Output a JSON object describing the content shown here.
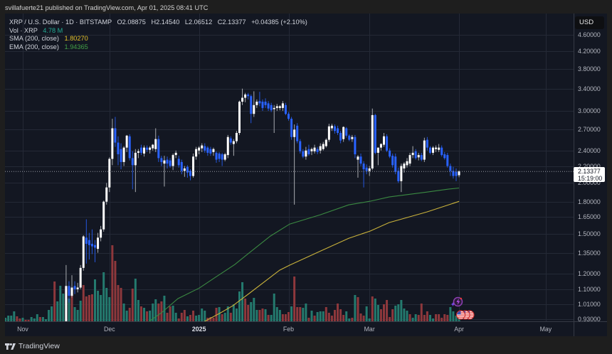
{
  "header": {
    "publisher_line": "svillafuerte21 published on TradingView.com, Apr 01, 2025 08:41 UTC"
  },
  "legend": {
    "symbol": "XRP / U.S. Dollar · 1D · BITSTAMP",
    "open": "O2.08875",
    "high": "H2.14540",
    "low": "L2.06512",
    "close": "C2.13377",
    "change": "+0.04385 (+2.10%)",
    "volume_label": "Vol · XRP",
    "volume_value": "4.78 M",
    "sma_label": "SMA (200, close)",
    "sma_value": "1.80270",
    "ema_label": "EMA (200, close)",
    "ema_value": "1.94365"
  },
  "price_axis": {
    "currency": "USD",
    "last_price": "2.13377",
    "countdown": "15:19:00"
  },
  "footer": {
    "brand": "TradingView",
    "logo_icon": "tradingview-logo-icon"
  },
  "event_markers": [
    {
      "icon": "lightning-event-icon",
      "index": 150
    },
    {
      "icon": "us-flag-icon",
      "index": 151
    },
    {
      "icon": "us-flag-icon",
      "index": 152
    },
    {
      "icon": "us-flag-icon",
      "index": 153
    }
  ],
  "colors": {
    "grid": "#242936",
    "axis_line": "#363a45",
    "candle_up": "#ffffff",
    "candle_up_wick": "#a9abb0",
    "candle_down": "#2962ff",
    "candle_down_wick": "#2456dc",
    "volume_up": "#247a6e",
    "volume_down": "#8e383c",
    "sma": "#c9b23b",
    "ema": "#3b8a42",
    "last_price_line": "#9598a1"
  },
  "chart_data": {
    "type": "candlestick",
    "title": "XRP / U.S. Dollar · 1D · BITSTAMP",
    "xlabel": "",
    "ylabel": "USD",
    "yscale": "log",
    "ylim": [
      0.918,
      5.19
    ],
    "grid": true,
    "legend_position": "top-left",
    "x_index_note": "index = days since Nov 1, 2024",
    "price_ticks": [
      {
        "value": 4.6,
        "label": "4.60000"
      },
      {
        "value": 4.2,
        "label": "4.20000"
      },
      {
        "value": 3.8,
        "label": "3.80000"
      },
      {
        "value": 3.4,
        "label": "3.40000"
      },
      {
        "value": 3.0,
        "label": "3.00000"
      },
      {
        "value": 2.7,
        "label": "2.70000"
      },
      {
        "value": 2.4,
        "label": "2.40000"
      },
      {
        "value": 2.2,
        "label": "2.20000"
      },
      {
        "value": 2.0,
        "label": "2.00000"
      },
      {
        "value": 1.8,
        "label": "1.80000"
      },
      {
        "value": 1.65,
        "label": "1.65000"
      },
      {
        "value": 1.5,
        "label": "1.50000"
      },
      {
        "value": 1.35,
        "label": "1.35000"
      },
      {
        "value": 1.2,
        "label": "1.20000"
      },
      {
        "value": 1.1,
        "label": "1.10000"
      },
      {
        "value": 1.01,
        "label": "1.01000"
      },
      {
        "value": 0.93,
        "label": "0.93000"
      }
    ],
    "time_ticks": [
      {
        "index": 0,
        "label": "Nov",
        "bold": false
      },
      {
        "index": 30,
        "label": "Dec",
        "bold": false
      },
      {
        "index": 61,
        "label": "2025",
        "bold": true
      },
      {
        "index": 92,
        "label": "Feb",
        "bold": false
      },
      {
        "index": 120,
        "label": "Mar",
        "bold": false
      },
      {
        "index": 151,
        "label": "Apr",
        "bold": false
      },
      {
        "index": 181,
        "label": "May",
        "bold": false
      }
    ],
    "last_price": 2.13377,
    "candles": {
      "start_index": 15,
      "ohlc": [
        [
          0.9,
          1.26,
          0.86,
          1.12
        ],
        [
          1.12,
          1.15,
          1.02,
          1.06
        ],
        [
          1.06,
          1.19,
          1.05,
          1.11
        ],
        [
          1.12,
          1.15,
          1.07,
          1.1
        ],
        [
          1.1,
          1.14,
          1.08,
          1.11
        ],
        [
          1.11,
          1.26,
          1.1,
          1.24
        ],
        [
          1.24,
          1.49,
          1.22,
          1.48
        ],
        [
          1.47,
          1.63,
          1.27,
          1.42
        ],
        [
          1.45,
          1.51,
          1.3,
          1.41
        ],
        [
          1.42,
          1.54,
          1.34,
          1.4
        ],
        [
          1.41,
          1.45,
          1.28,
          1.39
        ],
        [
          1.38,
          1.51,
          1.35,
          1.47
        ],
        [
          1.47,
          1.57,
          1.44,
          1.54
        ],
        [
          1.54,
          1.81,
          1.52,
          1.8
        ],
        [
          1.8,
          2.0,
          1.77,
          1.95
        ],
        [
          1.95,
          2.31,
          1.9,
          2.29
        ],
        [
          2.29,
          2.87,
          2.21,
          2.72
        ],
        [
          2.72,
          2.9,
          2.45,
          2.51
        ],
        [
          2.51,
          2.6,
          2.21,
          2.35
        ],
        [
          2.42,
          2.5,
          2.16,
          2.25
        ],
        [
          2.25,
          2.46,
          2.2,
          2.44
        ],
        [
          2.44,
          2.62,
          2.38,
          2.61
        ],
        [
          2.6,
          2.63,
          2.27,
          2.3
        ],
        [
          2.3,
          2.39,
          1.93,
          2.21
        ],
        [
          2.21,
          2.42,
          1.9,
          2.37
        ],
        [
          2.37,
          2.42,
          2.3,
          2.39
        ],
        [
          2.44,
          2.48,
          2.34,
          2.37
        ],
        [
          2.36,
          2.47,
          2.32,
          2.44
        ],
        [
          2.44,
          2.47,
          2.38,
          2.41
        ],
        [
          2.41,
          2.46,
          2.36,
          2.44
        ],
        [
          2.43,
          2.49,
          2.4,
          2.48
        ],
        [
          2.42,
          2.72,
          2.38,
          2.56
        ],
        [
          2.56,
          2.61,
          2.25,
          2.3
        ],
        [
          2.3,
          2.33,
          2.2,
          2.25
        ],
        [
          2.23,
          2.33,
          1.96,
          2.27
        ],
        [
          2.28,
          2.32,
          2.17,
          2.23
        ],
        [
          2.27,
          2.3,
          2.18,
          2.2
        ],
        [
          2.2,
          2.36,
          2.15,
          2.34
        ],
        [
          2.34,
          2.4,
          2.3,
          2.37
        ],
        [
          2.29,
          2.33,
          2.18,
          2.21
        ],
        [
          2.25,
          2.28,
          2.1,
          2.14
        ],
        [
          2.14,
          2.2,
          2.07,
          2.17
        ],
        [
          2.19,
          2.21,
          2.06,
          2.12
        ],
        [
          2.14,
          2.16,
          2.03,
          2.08
        ],
        [
          2.08,
          2.36,
          2.06,
          2.32
        ],
        [
          2.32,
          2.45,
          2.28,
          2.42
        ],
        [
          2.4,
          2.46,
          2.35,
          2.44
        ],
        [
          2.43,
          2.5,
          2.38,
          2.47
        ],
        [
          2.46,
          2.5,
          2.37,
          2.4
        ],
        [
          2.44,
          2.46,
          2.33,
          2.37
        ],
        [
          2.42,
          2.45,
          2.33,
          2.36
        ],
        [
          2.38,
          2.44,
          2.33,
          2.42
        ],
        [
          2.37,
          2.39,
          2.24,
          2.28
        ],
        [
          2.36,
          2.38,
          2.25,
          2.29
        ],
        [
          2.35,
          2.37,
          2.2,
          2.28
        ],
        [
          2.28,
          2.37,
          2.26,
          2.35
        ],
        [
          2.34,
          2.62,
          2.3,
          2.59
        ],
        [
          2.57,
          2.6,
          2.48,
          2.51
        ],
        [
          2.49,
          2.56,
          2.33,
          2.53
        ],
        [
          2.53,
          2.68,
          2.5,
          2.65
        ],
        [
          2.65,
          3.18,
          2.62,
          3.16
        ],
        [
          3.16,
          3.4,
          3.1,
          3.23
        ],
        [
          3.23,
          3.32,
          3.15,
          3.29
        ],
        [
          3.29,
          3.32,
          3.2,
          3.26
        ],
        [
          3.26,
          3.29,
          2.8,
          2.95
        ],
        [
          2.95,
          3.35,
          2.9,
          3.1
        ],
        [
          3.1,
          3.2,
          3.05,
          3.16
        ],
        [
          3.17,
          3.34,
          3.08,
          3.13
        ],
        [
          3.16,
          3.2,
          3.0,
          3.05
        ],
        [
          3.16,
          3.22,
          3.05,
          3.1
        ],
        [
          3.13,
          3.17,
          3.0,
          3.04
        ],
        [
          3.1,
          3.14,
          2.98,
          3.01
        ],
        [
          3.03,
          3.1,
          2.65,
          3.05
        ],
        [
          3.05,
          3.12,
          3.0,
          3.08
        ],
        [
          3.05,
          3.1,
          3.01,
          3.08
        ],
        [
          3.05,
          3.17,
          3.0,
          3.13
        ],
        [
          3.1,
          3.14,
          2.93,
          2.95
        ],
        [
          2.95,
          2.98,
          2.84,
          2.87
        ],
        [
          2.87,
          2.9,
          2.55,
          2.59
        ],
        [
          2.59,
          2.78,
          1.77,
          2.7
        ],
        [
          2.76,
          2.8,
          2.5,
          2.53
        ],
        [
          2.53,
          2.56,
          2.36,
          2.39
        ],
        [
          2.39,
          2.42,
          2.3,
          2.32
        ],
        [
          2.32,
          2.45,
          2.28,
          2.4
        ],
        [
          2.42,
          2.48,
          2.33,
          2.35
        ],
        [
          2.39,
          2.44,
          2.34,
          2.42
        ],
        [
          2.39,
          2.48,
          2.36,
          2.44
        ],
        [
          2.42,
          2.45,
          2.35,
          2.38
        ],
        [
          2.4,
          2.5,
          2.36,
          2.46
        ],
        [
          2.42,
          2.52,
          2.4,
          2.49
        ],
        [
          2.46,
          2.57,
          2.44,
          2.55
        ],
        [
          2.55,
          2.79,
          2.52,
          2.75
        ],
        [
          2.72,
          2.79,
          2.68,
          2.76
        ],
        [
          2.75,
          2.78,
          2.64,
          2.68
        ],
        [
          2.72,
          2.76,
          2.62,
          2.65
        ],
        [
          2.65,
          2.68,
          2.5,
          2.54
        ],
        [
          2.56,
          2.75,
          2.52,
          2.74
        ],
        [
          2.72,
          2.74,
          2.58,
          2.61
        ],
        [
          2.61,
          2.63,
          2.53,
          2.55
        ],
        [
          2.56,
          2.62,
          2.52,
          2.59
        ],
        [
          2.59,
          2.62,
          2.3,
          2.35
        ],
        [
          2.28,
          2.34,
          2.06,
          2.32
        ],
        [
          2.32,
          2.36,
          2.2,
          2.23
        ],
        [
          2.23,
          2.26,
          1.95,
          2.16
        ],
        [
          2.18,
          2.22,
          2.1,
          2.14
        ],
        [
          2.14,
          2.2,
          2.08,
          2.17
        ],
        [
          2.17,
          3.04,
          2.15,
          2.93
        ],
        [
          2.93,
          2.95,
          2.35,
          2.37
        ],
        [
          2.37,
          2.44,
          2.21,
          2.44
        ],
        [
          2.44,
          2.5,
          2.4,
          2.49
        ],
        [
          2.48,
          2.65,
          2.45,
          2.6
        ],
        [
          2.6,
          2.63,
          2.38,
          2.4
        ],
        [
          2.4,
          2.43,
          2.3,
          2.32
        ],
        [
          2.33,
          2.36,
          2.18,
          2.21
        ],
        [
          2.32,
          2.36,
          2.1,
          2.13
        ],
        [
          2.14,
          2.18,
          2.0,
          2.02
        ],
        [
          2.02,
          2.23,
          1.9,
          2.2
        ],
        [
          2.17,
          2.25,
          2.12,
          2.23
        ],
        [
          2.21,
          2.3,
          2.18,
          2.26
        ],
        [
          2.23,
          2.37,
          2.2,
          2.34
        ],
        [
          2.34,
          2.46,
          2.3,
          2.37
        ],
        [
          2.39,
          2.42,
          2.28,
          2.3
        ],
        [
          2.31,
          2.37,
          2.27,
          2.34
        ],
        [
          2.34,
          2.37,
          2.26,
          2.28
        ],
        [
          2.28,
          2.58,
          2.25,
          2.54
        ],
        [
          2.55,
          2.59,
          2.4,
          2.44
        ],
        [
          2.44,
          2.46,
          2.35,
          2.37
        ],
        [
          2.37,
          2.46,
          2.34,
          2.44
        ],
        [
          2.42,
          2.47,
          2.38,
          2.44
        ],
        [
          2.41,
          2.49,
          2.38,
          2.44
        ],
        [
          2.44,
          2.47,
          2.32,
          2.34
        ],
        [
          2.35,
          2.38,
          2.28,
          2.3
        ],
        [
          2.34,
          2.37,
          2.18,
          2.2
        ],
        [
          2.2,
          2.23,
          2.08,
          2.14
        ],
        [
          2.14,
          2.19,
          2.05,
          2.08
        ],
        [
          2.13,
          2.17,
          2.02,
          2.08
        ],
        [
          2.08875,
          2.1454,
          2.06512,
          2.13377
        ]
      ]
    },
    "volume": {
      "start_index": -6,
      "unit": "M XRP",
      "values_m": [
        3,
        4.8,
        4.8,
        8.4,
        4.2,
        2.4,
        3,
        1.2,
        1.2,
        3.6,
        2.4,
        6,
        3.6,
        3.6,
        1.8,
        9.6,
        12.6,
        33.6,
        16.8,
        30,
        23.4,
        28.2,
        19.2,
        27,
        12,
        9.6,
        17.4,
        30.6,
        21,
        22.2,
        22.8,
        35.4,
        25.8,
        22.2,
        41.4,
        28.2,
        20.4,
        64.2,
        51,
        30.6,
        28.2,
        15,
        9,
        11.4,
        27.6,
        36,
        18,
        12.6,
        11.4,
        8.4,
        9,
        15,
        18.6,
        15,
        16.8,
        21.6,
        7.2,
        12.6,
        13.2,
        7.2,
        2.4,
        7.2,
        9.6,
        4.2,
        5.4,
        9,
        4.8,
        5.4,
        10.8,
        9,
        3,
        3.6,
        3,
        11.4,
        12,
        6,
        7.2,
        12.6,
        7.2,
        14.4,
        10.8,
        25.2,
        33,
        19.2,
        13.8,
        16.2,
        19.8,
        9.6,
        9.6,
        10.8,
        10.2,
        5.4,
        5.4,
        23.4,
        12,
        9.6,
        6,
        6,
        7.8,
        12.6,
        37.8,
        12,
        12,
        11.4,
        15,
        3,
        9,
        4.8,
        7.8,
        8.4,
        8.4,
        12,
        7.2,
        4.8,
        9.6,
        15,
        10.2,
        5.4,
        8.4,
        2.4,
        3,
        22.2,
        20.4,
        6.6,
        4.8,
        12.6,
        2.4,
        21,
        19.2,
        13.8,
        10.2,
        14.4,
        18,
        3.6,
        10.2,
        13.2,
        14.4,
        18,
        10.8,
        9,
        6,
        3,
        6,
        5.4,
        15,
        5.4,
        8.4,
        5.4,
        2.4,
        6,
        6,
        3,
        6,
        5.4,
        12,
        8.4,
        4.8,
        4.78
      ],
      "direction": "uuuudduddouuuduuuuduuududuuudddduuuuuudddduudduududuuuddudduudddudduuuudddduduuduuuudduuudduduuuuddduddduududuuuddddddduududdduuduuddddduuuuuduudddduuddddduu"
    },
    "sma200": [
      [
        58,
        0.88
      ],
      [
        63,
        0.918
      ],
      [
        68.5,
        0.963
      ],
      [
        72.7,
        1.002
      ],
      [
        78.3,
        1.073
      ],
      [
        88.9,
        1.224
      ],
      [
        92.4,
        1.259
      ],
      [
        103,
        1.363
      ],
      [
        112.8,
        1.465
      ],
      [
        120.2,
        1.525
      ],
      [
        126.8,
        1.6
      ],
      [
        139.9,
        1.699
      ],
      [
        151,
        1.8027
      ]
    ],
    "ema200": [
      [
        38,
        0.88
      ],
      [
        43.8,
        0.918
      ],
      [
        48,
        0.963
      ],
      [
        53.7,
        1.043
      ],
      [
        61.1,
        1.107
      ],
      [
        67,
        1.18
      ],
      [
        73.4,
        1.264
      ],
      [
        77.6,
        1.336
      ],
      [
        85.7,
        1.483
      ],
      [
        92.4,
        1.587
      ],
      [
        103,
        1.672
      ],
      [
        112.8,
        1.768
      ],
      [
        120.2,
        1.804
      ],
      [
        126.8,
        1.848
      ],
      [
        139.9,
        1.9
      ],
      [
        147.3,
        1.931
      ],
      [
        151,
        1.94365
      ]
    ]
  }
}
